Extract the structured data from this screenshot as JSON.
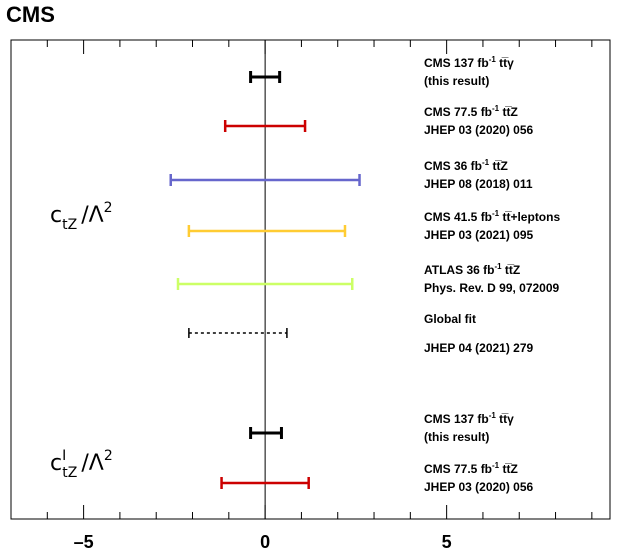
{
  "header": {
    "experiment": "CMS"
  },
  "chart_data": {
    "type": "interval",
    "xlim": [
      -7,
      9.5
    ],
    "x_ticks": [
      -5,
      0,
      5
    ],
    "x_tick_labels": [
      "–5",
      "0",
      "5"
    ],
    "zero_line": 0,
    "groups": [
      {
        "parameter_base": "c",
        "parameter_subscript": "tZ",
        "parameter_superscript": "",
        "parameter_divisor": "/Λ",
        "parameter_power": "2",
        "results": [
          {
            "low": -0.4,
            "high": 0.4,
            "color": "#000000",
            "style": "solid",
            "label_prefix": "CMS 137 fb",
            "label_sup": "-1",
            "label_suffix": " tt̅γ",
            "label_line2": "(this result)"
          },
          {
            "low": -1.1,
            "high": 1.1,
            "color": "#cc0000",
            "style": "solid",
            "label_prefix": "CMS 77.5 fb",
            "label_sup": "-1",
            "label_suffix": " tt̅Z",
            "label_line2": "JHEP 03 (2020) 056"
          },
          {
            "low": -2.6,
            "high": 2.6,
            "color": "#6666cc",
            "style": "solid",
            "label_prefix": "CMS 36 fb",
            "label_sup": "-1",
            "label_suffix": " tt̅Z",
            "label_line2": "JHEP 08 (2018) 011"
          },
          {
            "low": -2.1,
            "high": 2.2,
            "color": "#ffcc33",
            "style": "solid",
            "label_prefix": "CMS 41.5 fb",
            "label_sup": "-1",
            "label_suffix": " tt̅+leptons",
            "label_line2": "JHEP 03 (2021) 095"
          },
          {
            "low": -2.4,
            "high": 2.4,
            "color": "#ccff66",
            "style": "solid",
            "label_prefix": "ATLAS 36 fb",
            "label_sup": "-1",
            "label_suffix": " tt̅Z",
            "label_line2": "Phys. Rev. D 99, 072009"
          },
          {
            "low": -2.1,
            "high": 0.6,
            "color": "#000000",
            "style": "dashed",
            "label_prefix": "Global fit",
            "label_sup": "",
            "label_suffix": "",
            "label_line2": "JHEP 04 (2021) 279"
          }
        ]
      },
      {
        "parameter_base": "c",
        "parameter_subscript": "tZ",
        "parameter_superscript": "I",
        "parameter_divisor": "/Λ",
        "parameter_power": "2",
        "results": [
          {
            "low": -0.4,
            "high": 0.45,
            "color": "#000000",
            "style": "solid",
            "label_prefix": "CMS 137 fb",
            "label_sup": "-1",
            "label_suffix": " tt̅γ",
            "label_line2": "(this result)"
          },
          {
            "low": -1.2,
            "high": 1.2,
            "color": "#cc0000",
            "style": "solid",
            "label_prefix": "CMS 77.5 fb",
            "label_sup": "-1",
            "label_suffix": " tt̅Z",
            "label_line2": "JHEP 03 (2020) 056"
          }
        ]
      }
    ]
  }
}
